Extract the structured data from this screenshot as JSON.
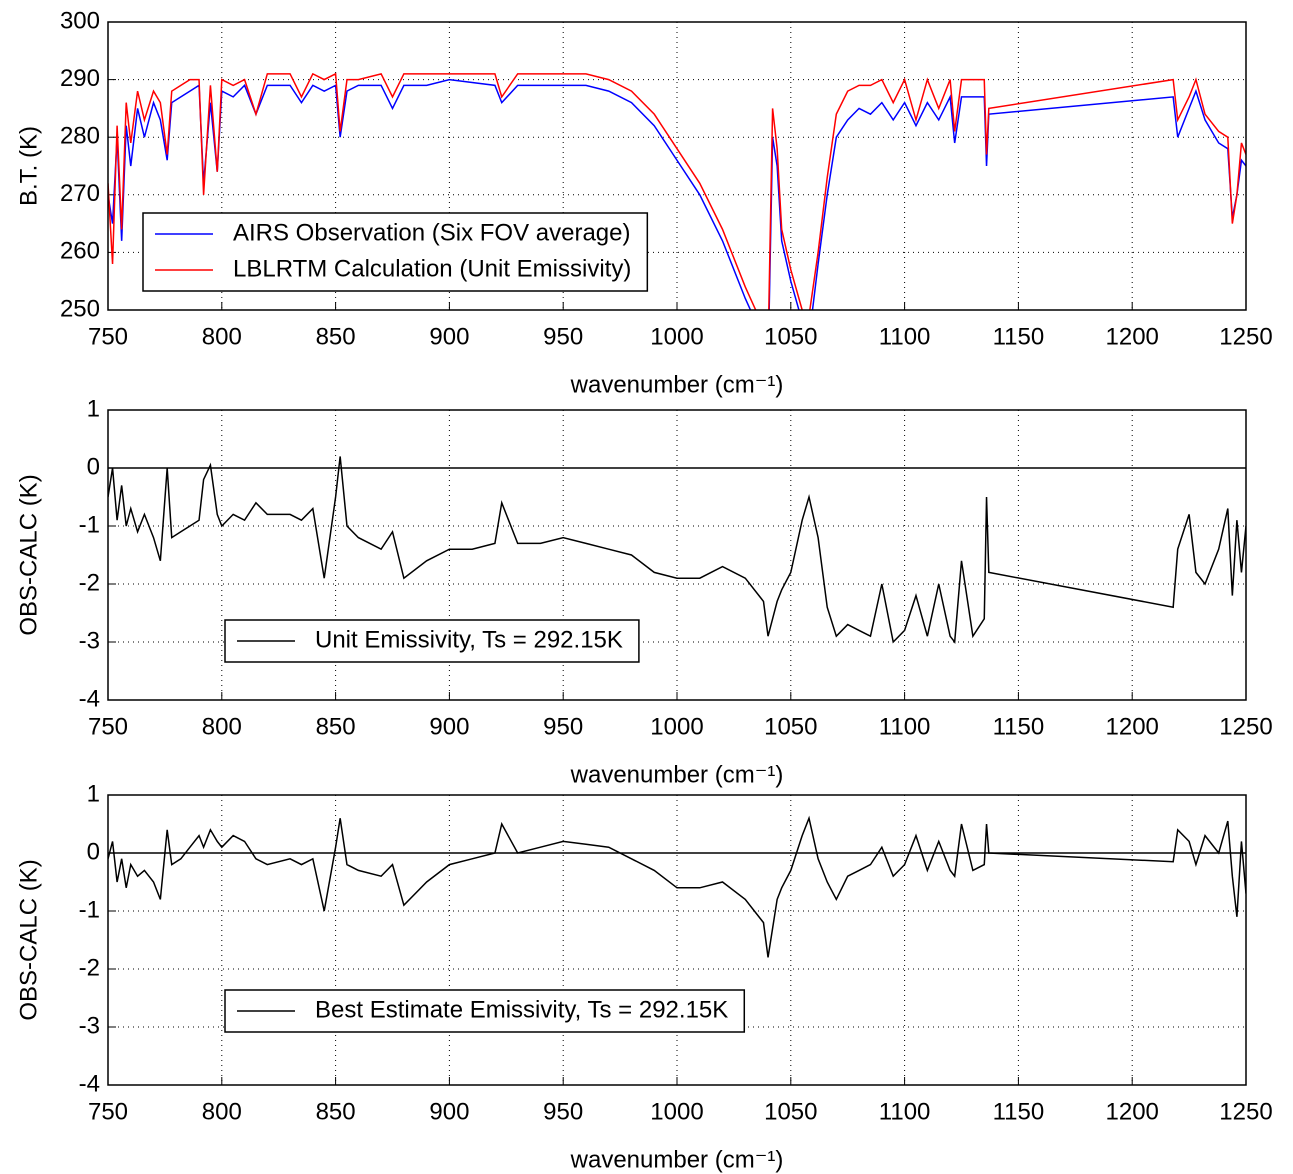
{
  "chart_data": [
    {
      "type": "line",
      "x": [
        750,
        752,
        754,
        756,
        758,
        760,
        763,
        766,
        770,
        773,
        776,
        778,
        782,
        786,
        790,
        792,
        795,
        798,
        800,
        805,
        810,
        815,
        820,
        830,
        835,
        840,
        845,
        850,
        852,
        855,
        860,
        870,
        875,
        880,
        890,
        900,
        910,
        920,
        923,
        930,
        940,
        950,
        960,
        970,
        980,
        990,
        1000,
        1010,
        1020,
        1030,
        1038,
        1040,
        1042,
        1044,
        1046,
        1050,
        1055,
        1058,
        1062,
        1066,
        1070,
        1075,
        1080,
        1085,
        1090,
        1095,
        1100,
        1105,
        1110,
        1115,
        1120,
        1122,
        1125,
        1130,
        1135,
        1136,
        1137,
        1218,
        1220,
        1225,
        1228,
        1232,
        1238,
        1242,
        1244,
        1246,
        1248,
        1250
      ],
      "series": [
        {
          "name": "AIRS Observation (Six FOV average)",
          "color": "#0000ff",
          "values": [
            270,
            265,
            280,
            262,
            282,
            275,
            285,
            280,
            286,
            283,
            276,
            286,
            287,
            288,
            289,
            272,
            286,
            274,
            288,
            287,
            289,
            284,
            289,
            289,
            286,
            289,
            288,
            289,
            280,
            288,
            289,
            289,
            285,
            289,
            289,
            290,
            289.5,
            289,
            286,
            289,
            289,
            289,
            289,
            288,
            286,
            282,
            276,
            270,
            262,
            252,
            245,
            240,
            280,
            275,
            262,
            255,
            248,
            245,
            258,
            270,
            280,
            283,
            285,
            284,
            286,
            283,
            286,
            282,
            286,
            283,
            287,
            279,
            287,
            287,
            287,
            275,
            284,
            287,
            280,
            285,
            288,
            283,
            279,
            278,
            266,
            270,
            276,
            275
          ]
        },
        {
          "name": "LBLRTM Calculation (Unit Emissivity)",
          "color": "#ff0000",
          "values": [
            272,
            258,
            282,
            264,
            286,
            279,
            288,
            283,
            288,
            286,
            277,
            288,
            289,
            290,
            290,
            270,
            289,
            274,
            290,
            289,
            290,
            284,
            291,
            291,
            287,
            291,
            290,
            291,
            281,
            290,
            290,
            291,
            287,
            291,
            291,
            291,
            291,
            291,
            287,
            291,
            291,
            291,
            291,
            290,
            288,
            284,
            278,
            272,
            264,
            254,
            247,
            243,
            285,
            278,
            264,
            257,
            250,
            249,
            260,
            273,
            284,
            288,
            289,
            289,
            290,
            286,
            290,
            283,
            290,
            285,
            290,
            281,
            290,
            290,
            290,
            277,
            285,
            290,
            283,
            287,
            290,
            284,
            281,
            280,
            265,
            270,
            279,
            277
          ]
        }
      ],
      "xlim": [
        750,
        1250
      ],
      "xticks": [
        750,
        800,
        850,
        900,
        950,
        1000,
        1050,
        1100,
        1150,
        1200,
        1250
      ],
      "ylim": [
        250,
        300
      ],
      "yticks": [
        250,
        260,
        270,
        280,
        290,
        300
      ],
      "xlabel": "wavenumber (cm⁻¹)",
      "ylabel": "B.T. (K)",
      "grid": true,
      "legend": "lower left"
    },
    {
      "type": "line",
      "x": [
        750,
        752,
        754,
        756,
        758,
        760,
        763,
        766,
        770,
        773,
        776,
        778,
        782,
        786,
        790,
        792,
        795,
        798,
        800,
        805,
        810,
        815,
        820,
        830,
        835,
        840,
        845,
        850,
        852,
        855,
        860,
        870,
        875,
        880,
        890,
        900,
        910,
        920,
        923,
        930,
        940,
        950,
        960,
        970,
        980,
        990,
        1000,
        1010,
        1020,
        1030,
        1038,
        1040,
        1042,
        1044,
        1046,
        1050,
        1055,
        1058,
        1062,
        1066,
        1070,
        1075,
        1080,
        1085,
        1090,
        1095,
        1100,
        1105,
        1110,
        1115,
        1120,
        1122,
        1125,
        1130,
        1135,
        1136,
        1137,
        1218,
        1220,
        1225,
        1228,
        1232,
        1238,
        1242,
        1244,
        1246,
        1248,
        1250
      ],
      "series": [
        {
          "name": "Unit Emissivity, Ts = 292.15K",
          "color": "#000000",
          "values": [
            -0.5,
            0,
            -0.9,
            -0.3,
            -1.0,
            -0.7,
            -1.1,
            -0.8,
            -1.2,
            -1.6,
            0,
            -1.2,
            -1.1,
            -1.0,
            -0.9,
            -0.2,
            0.05,
            -0.8,
            -1.0,
            -0.8,
            -0.9,
            -0.6,
            -0.8,
            -0.8,
            -0.9,
            -0.7,
            -1.9,
            -0.5,
            0.2,
            -1.0,
            -1.2,
            -1.4,
            -1.1,
            -1.9,
            -1.6,
            -1.4,
            -1.4,
            -1.3,
            -0.6,
            -1.3,
            -1.3,
            -1.2,
            -1.3,
            -1.4,
            -1.5,
            -1.8,
            -1.9,
            -1.9,
            -1.7,
            -1.9,
            -2.3,
            -2.9,
            -2.6,
            -2.3,
            -2.1,
            -1.8,
            -0.9,
            -0.5,
            -1.2,
            -2.4,
            -2.9,
            -2.7,
            -2.8,
            -2.9,
            -2.0,
            -3.0,
            -2.8,
            -2.2,
            -2.9,
            -2.0,
            -2.9,
            -3.0,
            -1.6,
            -2.9,
            -2.6,
            -0.5,
            -1.8,
            -2.4,
            -1.4,
            -0.8,
            -1.8,
            -2.0,
            -1.4,
            -0.7,
            -2.2,
            -0.9,
            -1.8,
            -1.0
          ]
        }
      ],
      "xlim": [
        750,
        1250
      ],
      "xticks": [
        750,
        800,
        850,
        900,
        950,
        1000,
        1050,
        1100,
        1150,
        1200,
        1250
      ],
      "ylim": [
        -4,
        1
      ],
      "yticks": [
        -4,
        -3,
        -2,
        -1,
        0,
        1
      ],
      "hlines": [
        0
      ],
      "xlabel": "wavenumber (cm⁻¹)",
      "ylabel": "OBS-CALC (K)",
      "grid": true,
      "legend": "lower left"
    },
    {
      "type": "line",
      "x": [
        750,
        752,
        754,
        756,
        758,
        760,
        763,
        766,
        770,
        773,
        776,
        778,
        782,
        786,
        790,
        792,
        795,
        798,
        800,
        805,
        810,
        815,
        820,
        830,
        835,
        840,
        845,
        850,
        852,
        855,
        860,
        870,
        875,
        880,
        890,
        900,
        910,
        920,
        923,
        930,
        940,
        950,
        960,
        970,
        980,
        990,
        1000,
        1010,
        1020,
        1030,
        1038,
        1040,
        1042,
        1044,
        1046,
        1050,
        1055,
        1058,
        1062,
        1066,
        1070,
        1075,
        1080,
        1085,
        1090,
        1095,
        1100,
        1105,
        1110,
        1115,
        1120,
        1122,
        1125,
        1130,
        1135,
        1136,
        1137,
        1218,
        1220,
        1225,
        1228,
        1232,
        1238,
        1242,
        1244,
        1246,
        1248,
        1250
      ],
      "series": [
        {
          "name": "Best Estimate Emissivity, Ts = 292.15K",
          "color": "#000000",
          "values": [
            -0.1,
            0.2,
            -0.5,
            -0.1,
            -0.6,
            -0.2,
            -0.4,
            -0.3,
            -0.5,
            -0.8,
            0.4,
            -0.2,
            -0.1,
            0.1,
            0.3,
            0.1,
            0.4,
            0.2,
            0.1,
            0.3,
            0.2,
            -0.1,
            -0.2,
            -0.1,
            -0.2,
            -0.1,
            -1.0,
            0.1,
            0.6,
            -0.2,
            -0.3,
            -0.4,
            -0.2,
            -0.9,
            -0.5,
            -0.2,
            -0.1,
            0,
            0.5,
            0,
            0.1,
            0.2,
            0.15,
            0.1,
            -0.1,
            -0.3,
            -0.6,
            -0.6,
            -0.5,
            -0.8,
            -1.2,
            -1.8,
            -1.3,
            -0.8,
            -0.6,
            -0.3,
            0.3,
            0.6,
            -0.1,
            -0.5,
            -0.8,
            -0.4,
            -0.3,
            -0.2,
            0.1,
            -0.4,
            -0.2,
            0.3,
            -0.3,
            0.2,
            -0.3,
            -0.4,
            0.5,
            -0.3,
            -0.2,
            0.5,
            0,
            -0.15,
            0.4,
            0.2,
            -0.2,
            0.3,
            0,
            0.55,
            -0.4,
            -1.1,
            0.2,
            -0.7
          ]
        }
      ],
      "xlim": [
        750,
        1250
      ],
      "xticks": [
        750,
        800,
        850,
        900,
        950,
        1000,
        1050,
        1100,
        1150,
        1200,
        1250
      ],
      "ylim": [
        -4,
        1
      ],
      "yticks": [
        -4,
        -3,
        -2,
        -1,
        0,
        1
      ],
      "hlines": [
        0
      ],
      "xlabel": "wavenumber (cm⁻¹)",
      "ylabel": "OBS-CALC (K)",
      "grid": true,
      "legend": "lower left"
    }
  ]
}
